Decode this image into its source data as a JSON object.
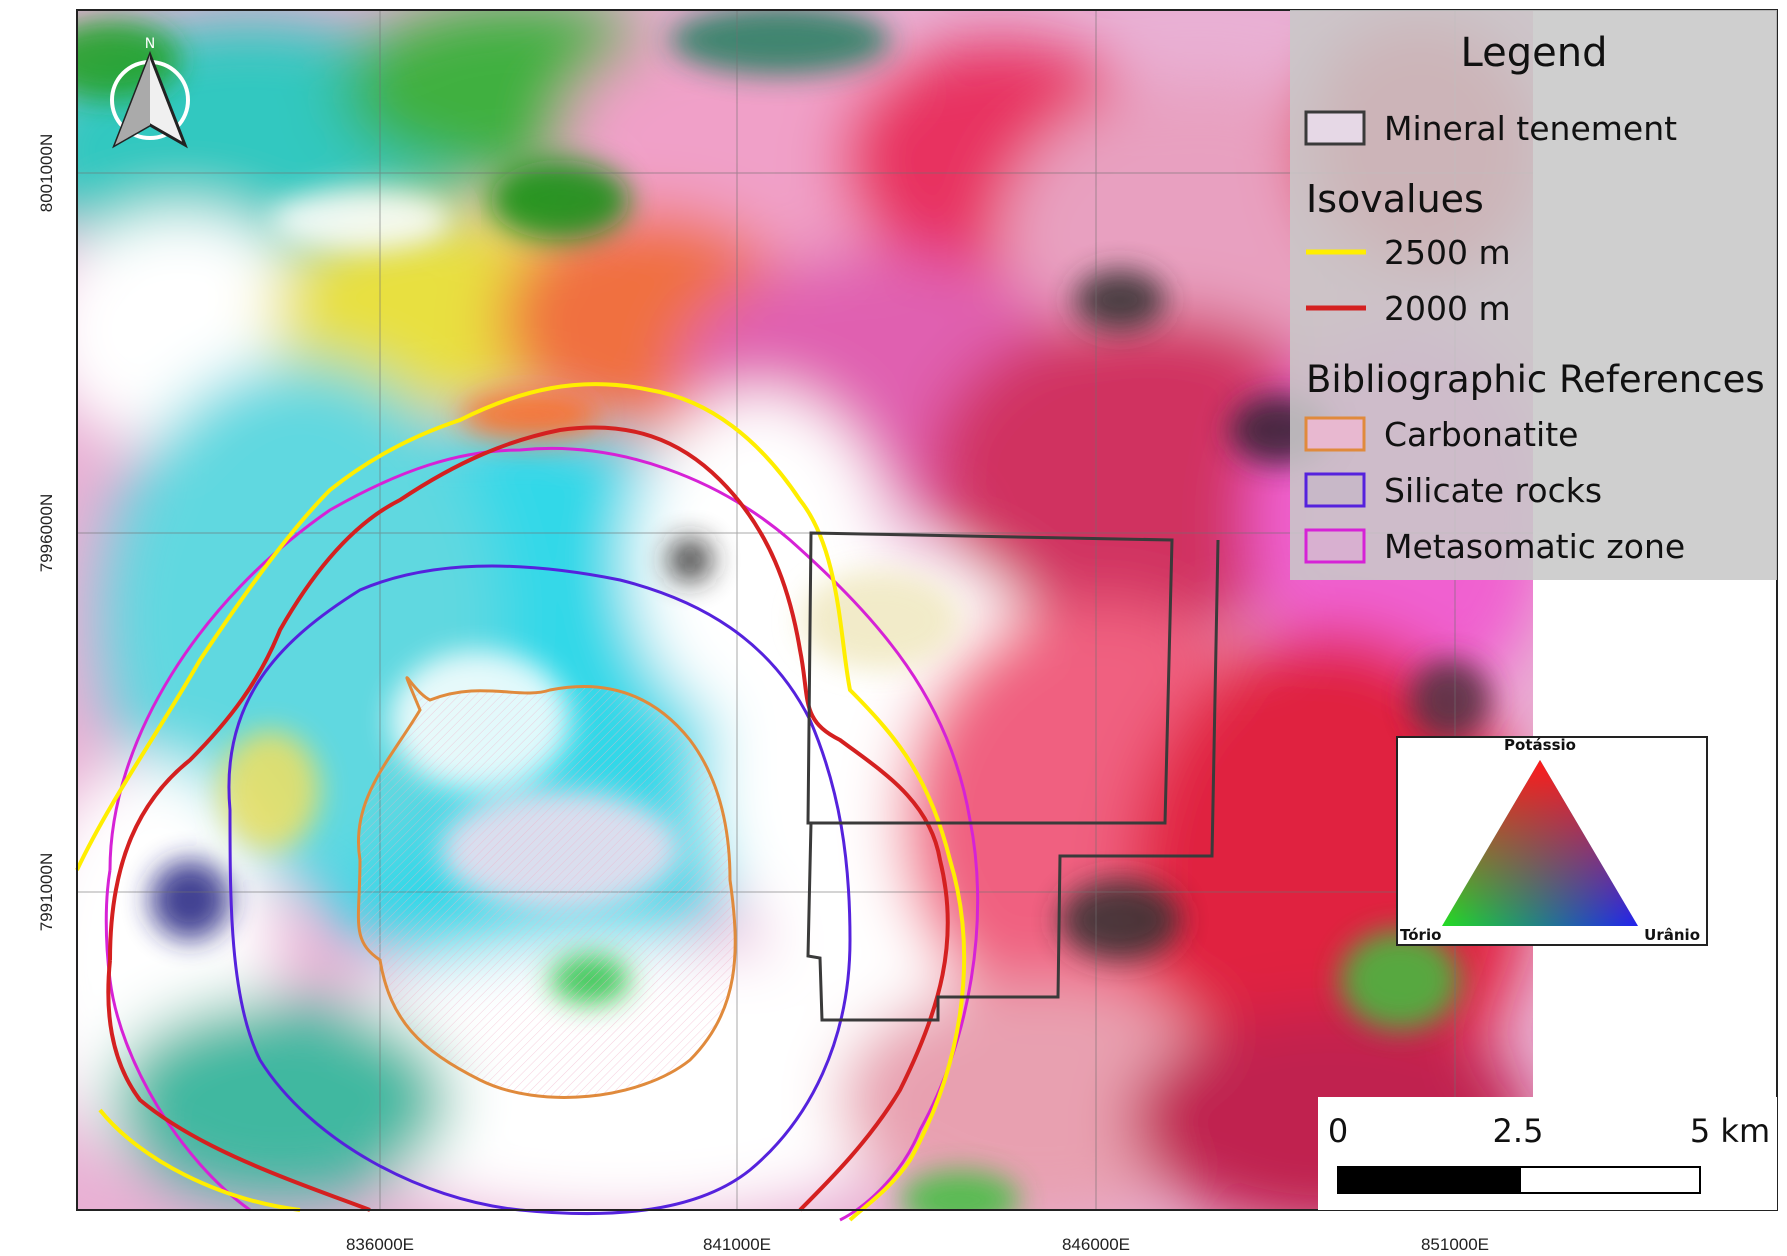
{
  "map": {
    "grid_x_labels": [
      "836000E",
      "841000E",
      "846000E",
      "851000E"
    ],
    "grid_y_labels": [
      "8001000N",
      "7996000N",
      "7991000N"
    ],
    "north_arrow_label": "N"
  },
  "legend": {
    "title": "Legend",
    "tenement_label": "Mineral tenement",
    "isovalues_title": "Isovalues",
    "iso_2500_label": "2500 m",
    "iso_2000_label": "2000 m",
    "refs_title": "Bibliographic References",
    "carbonatite_label": "Carbonatite",
    "silicate_label": "Silicate rocks",
    "metasomatic_label": "Metasomatic zone"
  },
  "ternary": {
    "top_label": "Potássio",
    "left_label": "Tório",
    "right_label": "Urânio"
  },
  "scalebar": {
    "labels": [
      "0",
      "2.5",
      "5 km"
    ]
  },
  "colors": {
    "tenement": "#3a3a3a",
    "iso_2500": "#ffee00",
    "iso_2000": "#d42020",
    "carbonatite": "#e08a3c",
    "silicate": "#5522dd",
    "metasomatic": "#d622d6",
    "legend_bg": "#c8c8c8"
  }
}
